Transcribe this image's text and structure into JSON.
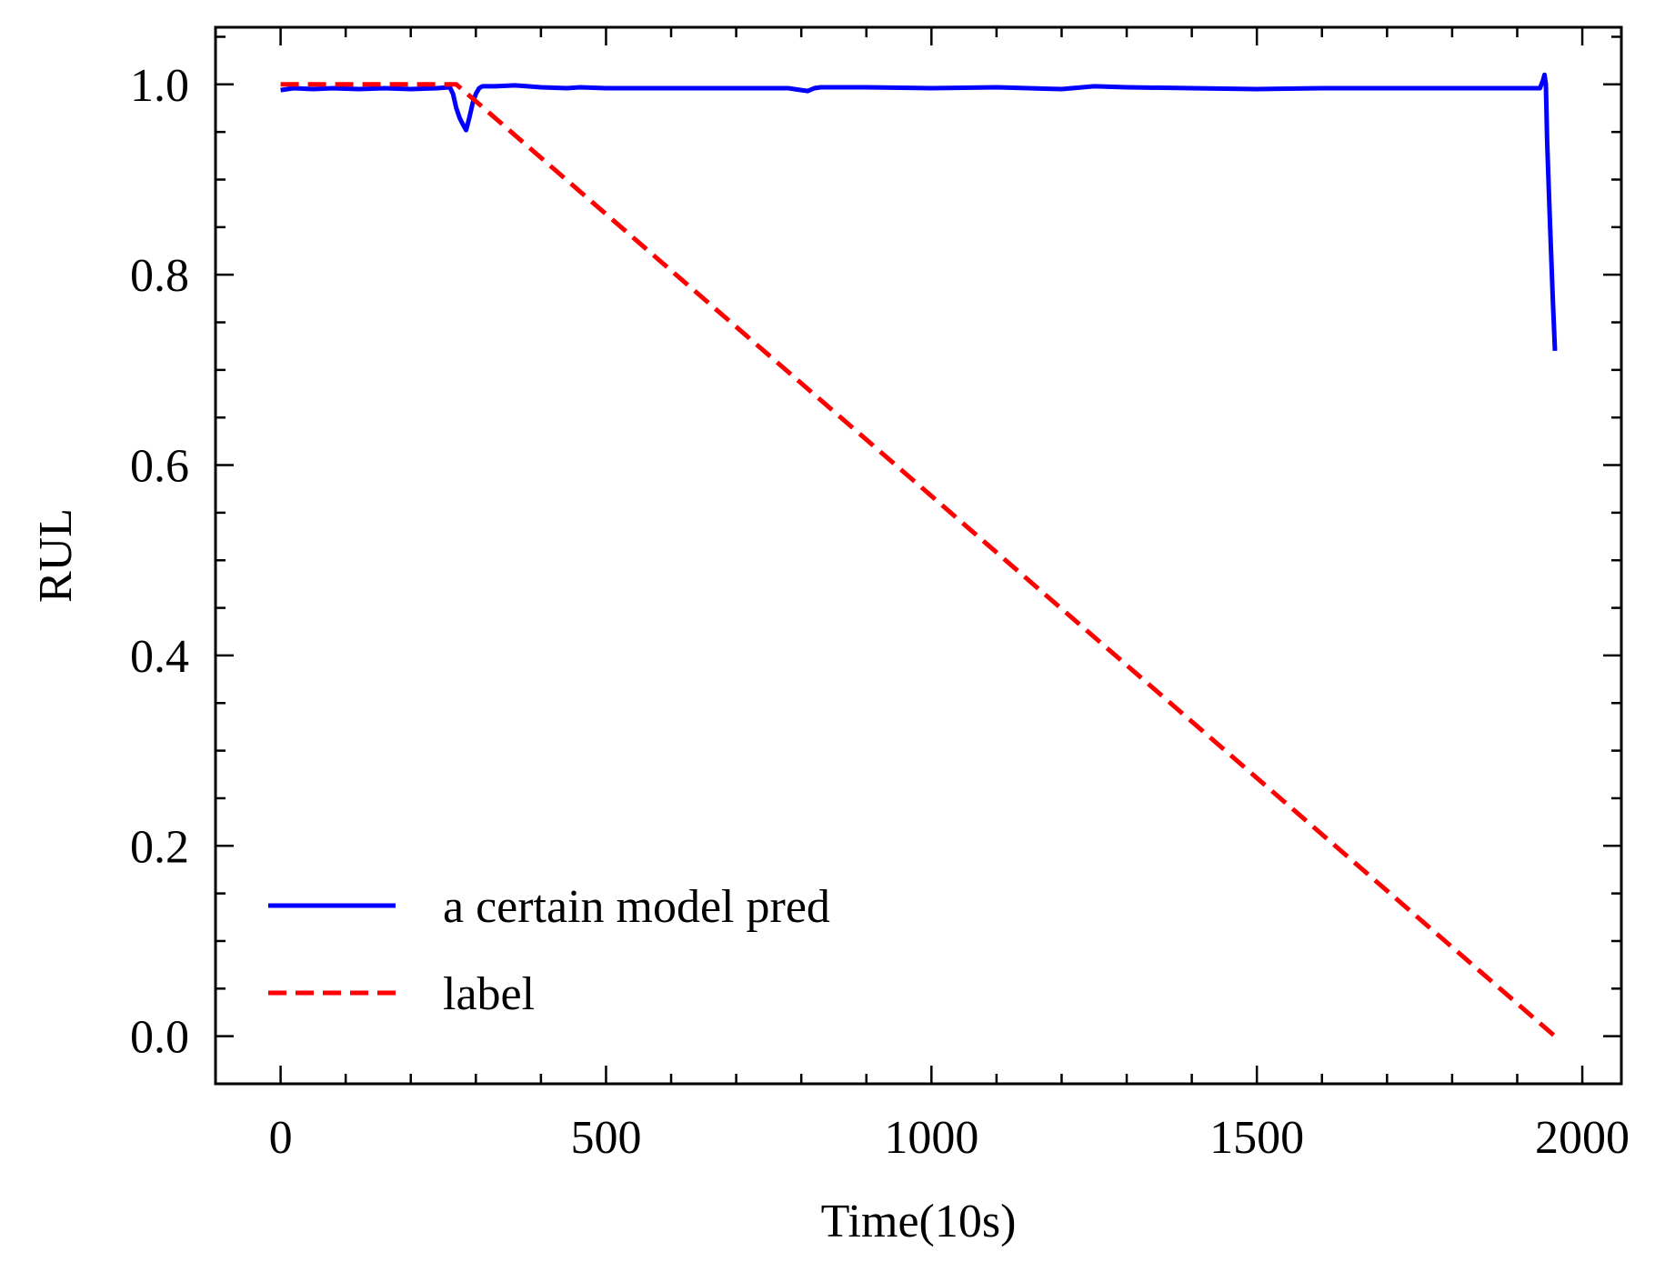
{
  "chart_data": {
    "type": "line",
    "title": "",
    "xlabel": "Time(10s)",
    "ylabel": "RUL",
    "xlim": [
      -100,
      2060
    ],
    "ylim": [
      -0.05,
      1.06
    ],
    "x_ticks": [
      0,
      500,
      1000,
      1500,
      2000
    ],
    "x_tick_labels": [
      "0",
      "500",
      "1000",
      "1500",
      "2000"
    ],
    "y_ticks": [
      0.0,
      0.2,
      0.4,
      0.6,
      0.8,
      1.0
    ],
    "y_tick_labels": [
      "0.0",
      "0.2",
      "0.4",
      "0.6",
      "0.8",
      "1.0"
    ],
    "grid": false,
    "legend_position": "lower-left",
    "series": [
      {
        "name": "a certain model pred",
        "color": "#0000ff",
        "style": "solid",
        "x": [
          0,
          20,
          50,
          80,
          120,
          160,
          200,
          240,
          260,
          265,
          270,
          275,
          280,
          285,
          290,
          295,
          300,
          305,
          310,
          330,
          360,
          400,
          440,
          460,
          500,
          600,
          700,
          780,
          800,
          810,
          820,
          830,
          900,
          1000,
          1100,
          1200,
          1250,
          1300,
          1400,
          1500,
          1600,
          1700,
          1800,
          1900,
          1935,
          1940,
          1942,
          1944,
          1946,
          1950,
          1955,
          1958
        ],
        "y": [
          0.994,
          0.996,
          0.995,
          0.996,
          0.995,
          0.996,
          0.995,
          0.996,
          0.997,
          0.99,
          0.975,
          0.965,
          0.958,
          0.952,
          0.965,
          0.98,
          0.99,
          0.996,
          0.998,
          0.998,
          0.999,
          0.997,
          0.996,
          0.997,
          0.996,
          0.996,
          0.996,
          0.996,
          0.994,
          0.993,
          0.996,
          0.997,
          0.997,
          0.996,
          0.997,
          0.995,
          0.998,
          0.997,
          0.996,
          0.995,
          0.996,
          0.996,
          0.996,
          0.996,
          0.996,
          1.005,
          1.01,
          1.0,
          0.94,
          0.86,
          0.77,
          0.72
        ]
      },
      {
        "name": "label",
        "color": "#ff0000",
        "style": "dashed",
        "x": [
          0,
          270,
          1958
        ],
        "y": [
          1.0,
          1.0,
          0.0
        ]
      }
    ]
  }
}
